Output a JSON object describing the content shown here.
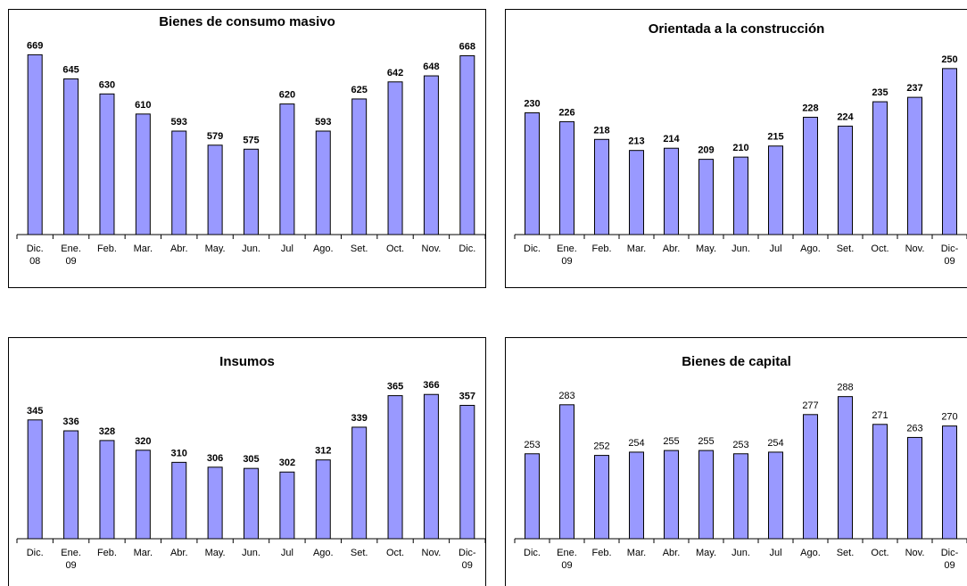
{
  "chart_data": [
    {
      "type": "bar",
      "title": "Bienes de consumo masivo",
      "categories": [
        [
          "Dic.",
          "08"
        ],
        [
          "Ene.",
          "09"
        ],
        [
          "Feb."
        ],
        [
          "Mar."
        ],
        [
          "Abr."
        ],
        [
          "May."
        ],
        [
          "Jun."
        ],
        [
          "Jul"
        ],
        [
          "Ago."
        ],
        [
          "Set."
        ],
        [
          "Oct."
        ],
        [
          "Nov."
        ],
        [
          "Dic."
        ]
      ],
      "values": [
        669,
        645,
        630,
        610,
        593,
        579,
        575,
        620,
        593,
        625,
        642,
        648,
        668
      ],
      "labels_bold": true,
      "ylim": [
        490,
        680
      ],
      "grid": false,
      "color": "#9999ff"
    },
    {
      "type": "bar",
      "title": "Orientada a la construcción",
      "categories": [
        [
          "Dic."
        ],
        [
          "Ene.",
          "09"
        ],
        [
          "Feb."
        ],
        [
          "Mar."
        ],
        [
          "Abr."
        ],
        [
          "May."
        ],
        [
          "Jun."
        ],
        [
          "Jul"
        ],
        [
          "Ago."
        ],
        [
          "Set."
        ],
        [
          "Oct."
        ],
        [
          "Nov."
        ],
        [
          "Dic-",
          "09"
        ]
      ],
      "values": [
        230,
        226,
        218,
        213,
        214,
        209,
        210,
        215,
        228,
        224,
        235,
        237,
        250
      ],
      "labels_bold": true,
      "ylim": [
        175,
        258
      ],
      "grid": false,
      "color": "#9999ff"
    },
    {
      "type": "bar",
      "title": "Insumos",
      "categories": [
        [
          "Dic."
        ],
        [
          "Ene.",
          "09"
        ],
        [
          "Feb."
        ],
        [
          "Mar."
        ],
        [
          "Abr."
        ],
        [
          "May."
        ],
        [
          "Jun."
        ],
        [
          "Jul"
        ],
        [
          "Ago."
        ],
        [
          "Set."
        ],
        [
          "Oct."
        ],
        [
          "Nov."
        ],
        [
          "Dic-",
          "09"
        ]
      ],
      "values": [
        345,
        336,
        328,
        320,
        310,
        306,
        305,
        302,
        312,
        339,
        365,
        366,
        357
      ],
      "labels_bold": true,
      "ylim": [
        247,
        375
      ],
      "grid": false,
      "color": "#9999ff"
    },
    {
      "type": "bar",
      "title": "Bienes de capital",
      "categories": [
        [
          "Dic."
        ],
        [
          "Ene.",
          "09"
        ],
        [
          "Feb."
        ],
        [
          "Mar."
        ],
        [
          "Abr."
        ],
        [
          "May."
        ],
        [
          "Jun."
        ],
        [
          "Jul"
        ],
        [
          "Ago."
        ],
        [
          "Set."
        ],
        [
          "Oct."
        ],
        [
          "Nov."
        ],
        [
          "Dic-",
          "09"
        ]
      ],
      "values": [
        253,
        283,
        252,
        254,
        255,
        255,
        253,
        254,
        277,
        288,
        271,
        263,
        270
      ],
      "labels_bold": false,
      "ylim": [
        201,
        296
      ],
      "grid": false,
      "color": "#9999ff"
    }
  ]
}
